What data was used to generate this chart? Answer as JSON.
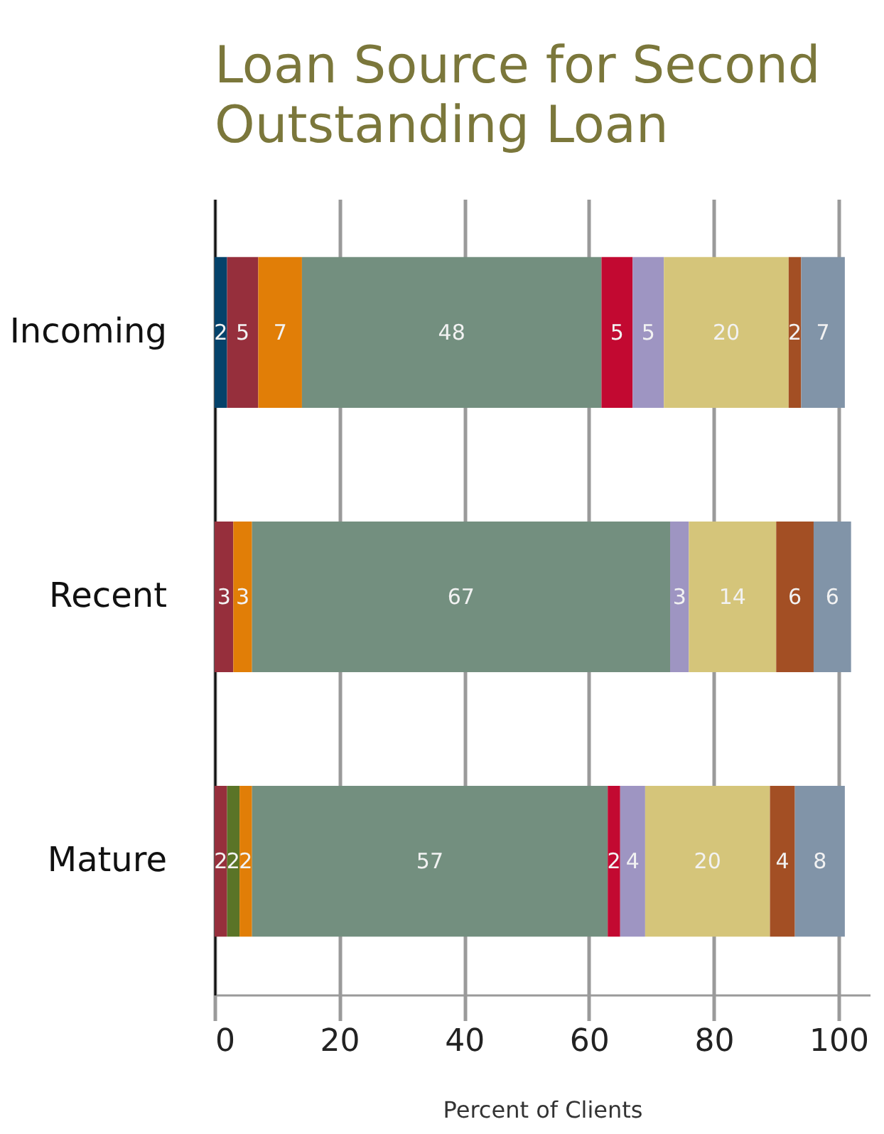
{
  "chart_data": {
    "type": "bar",
    "orientation": "horizontal",
    "stacked": true,
    "title": "Loan Source for Second Outstanding Loan",
    "xlabel": "Percent of Clients",
    "categories": [
      "Incoming",
      "Recent",
      "Mature"
    ],
    "series": [
      {
        "color": "#04426a",
        "values": [
          2,
          null,
          null
        ]
      },
      {
        "color": "#962f3c",
        "values": [
          5,
          3,
          2
        ]
      },
      {
        "color": "#5a7427",
        "values": [
          null,
          null,
          2
        ]
      },
      {
        "color": "#e17e07",
        "values": [
          7,
          3,
          2
        ]
      },
      {
        "color": "#738f7f",
        "values": [
          48,
          67,
          57
        ]
      },
      {
        "color": "#c20931",
        "values": [
          5,
          null,
          2
        ]
      },
      {
        "color": "#9e95c2",
        "values": [
          5,
          3,
          4
        ]
      },
      {
        "color": "#d5c57a",
        "values": [
          20,
          14,
          20
        ]
      },
      {
        "color": "#a34f24",
        "values": [
          2,
          6,
          4
        ]
      },
      {
        "color": "#8194a8",
        "values": [
          7,
          6,
          8
        ]
      }
    ],
    "xlim": [
      0,
      105
    ],
    "xticks": [
      0,
      20,
      40,
      60,
      80,
      100
    ],
    "grid": "x",
    "data_labels": true
  }
}
